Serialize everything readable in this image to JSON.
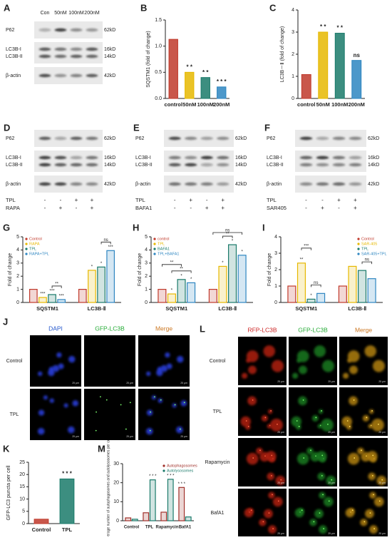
{
  "chart_data": [
    {
      "panel": "B",
      "type": "bar",
      "y_label": "SQSTM1 (fold of change)",
      "categories": [
        "control",
        "50nM",
        "100nM",
        "200nM"
      ],
      "values": [
        1.13,
        0.5,
        0.4,
        0.22
      ],
      "colors": [
        "#c0392b",
        "#e6b800",
        "#1a7a6a",
        "#2e86c1"
      ],
      "sig_labels": [
        null,
        "* *",
        "* *",
        "* * *"
      ],
      "ylim": [
        0,
        1.5
      ],
      "yticks": [
        {
          "value": 0,
          "label": "0.0"
        },
        {
          "value": 0.5,
          "label": "0.5"
        },
        {
          "value": 1,
          "label": "1.0"
        },
        {
          "value": 1.5,
          "label": "1.5"
        }
      ]
    },
    {
      "panel": "C",
      "type": "bar",
      "y_label": "LC3B－Ⅱ (fold of change)",
      "categories": [
        "control",
        "50nM",
        "100nM",
        "200nM"
      ],
      "values": [
        1.08,
        3.0,
        2.95,
        1.72
      ],
      "colors": [
        "#c0392b",
        "#e6b800",
        "#1a7a6a",
        "#2e86c1"
      ],
      "sig_labels": [
        null,
        "* *",
        "* *",
        "ns"
      ],
      "ylim": [
        0,
        4
      ],
      "yticks": [
        0,
        1,
        2,
        3,
        4
      ]
    },
    {
      "panel": "G",
      "type": "bar",
      "y_label": "Fold of change",
      "categories": [
        "SQSTM1",
        "LC3B-Ⅱ"
      ],
      "series": [
        {
          "name": "Control",
          "color": "#c0392b",
          "values": [
            1.0,
            1.0
          ],
          "sig_labels": [
            null,
            null
          ]
        },
        {
          "name": "RAPA",
          "color": "#e6b800",
          "values": [
            0.38,
            2.45
          ],
          "sig_labels": [
            "***",
            "*"
          ]
        },
        {
          "name": "TPL",
          "color": "#1a7a6a",
          "values": [
            0.6,
            2.7
          ],
          "sig_labels": [
            "***",
            "*"
          ]
        },
        {
          "name": "RAPA+TPL",
          "color": "#2e86c1",
          "values": [
            0.22,
            3.95
          ],
          "sig_labels": [
            "***",
            "***"
          ]
        }
      ],
      "brackets": [
        {
          "label": "**",
          "category": "SQSTM1",
          "between": [
            "TPL",
            "RAPA+TPL"
          ]
        },
        {
          "label": "ns",
          "category": "LC3B-Ⅱ",
          "between": [
            "TPL",
            "RAPA+TPL"
          ]
        }
      ],
      "ylim": [
        0,
        5
      ],
      "yticks": [
        0,
        1,
        2,
        3,
        4,
        5
      ],
      "legend": "top-left"
    },
    {
      "panel": "H",
      "type": "bar",
      "y_label": "Fold of change",
      "categories": [
        "SQSTM1",
        "LC3B-Ⅱ"
      ],
      "series": [
        {
          "name": "control",
          "color": "#c0392b",
          "values": [
            1.0,
            1.0
          ],
          "sig_labels": [
            null,
            null
          ]
        },
        {
          "name": "TPL",
          "color": "#e6b800",
          "values": [
            0.65,
            2.75
          ],
          "sig_labels": [
            "*",
            "*"
          ]
        },
        {
          "name": "BAFA1",
          "color": "#1a7a6a",
          "values": [
            1.75,
            4.4
          ],
          "sig_labels": [
            "*",
            "*"
          ]
        },
        {
          "name": "TPL+BAFA1",
          "color": "#2e86c1",
          "values": [
            1.5,
            3.6
          ],
          "sig_labels": [
            "*",
            "*"
          ]
        }
      ],
      "brackets": [
        {
          "label": "**",
          "category": "SQSTM1",
          "between": [
            "TPL",
            "TPL+BAFA1"
          ]
        },
        {
          "label": "**",
          "category": "SQSTM1",
          "between": [
            "control",
            "BAFA1"
          ]
        },
        {
          "label": "**",
          "category": "LC3B-Ⅱ",
          "between": [
            "TPL",
            "BAFA1"
          ]
        },
        {
          "label": "ns",
          "category": "LC3B-Ⅱ",
          "between": [
            "control",
            "TPL+BAFA1"
          ]
        }
      ],
      "ylim": [
        0,
        5
      ],
      "yticks": [
        0,
        1,
        2,
        3,
        4,
        5
      ],
      "legend": "top-left"
    },
    {
      "panel": "I",
      "type": "bar",
      "y_label": "Fold of change",
      "categories": [
        "SQSTM1",
        "LC3B-Ⅱ"
      ],
      "series": [
        {
          "name": "Control",
          "color": "#c0392b",
          "values": [
            1.0,
            1.0
          ],
          "sig_labels": [
            null,
            null
          ]
        },
        {
          "name": "SAR-405",
          "color": "#e6b800",
          "values": [
            2.4,
            2.2
          ],
          "sig_labels": [
            "**",
            null
          ]
        },
        {
          "name": "TPL",
          "color": "#1a7a6a",
          "values": [
            0.2,
            1.95
          ],
          "sig_labels": [
            "*",
            null
          ]
        },
        {
          "name": "SAR-405+TPL",
          "color": "#2e86c1",
          "values": [
            0.55,
            1.45
          ],
          "sig_labels": [
            null,
            null
          ]
        }
      ],
      "brackets": [
        {
          "label": "ns",
          "category": "SQSTM1",
          "between": [
            "TPL",
            "SAR-405+TPL"
          ]
        },
        {
          "label": "***",
          "category": "SQSTM1",
          "between": [
            "SAR-405",
            "TPL"
          ]
        },
        {
          "label": "ns",
          "category": "LC3B-Ⅱ",
          "between": [
            "TPL",
            "SAR-405+TPL"
          ]
        }
      ],
      "ylim": [
        0,
        4
      ],
      "yticks": [
        0,
        1,
        2,
        3,
        4
      ],
      "legend": "top-right"
    },
    {
      "panel": "K",
      "type": "bar",
      "y_label": "GFP-LC3 puncta per cell",
      "categories": [
        "Control",
        "TPL"
      ],
      "values": [
        1.8,
        18.2
      ],
      "colors": [
        "#c0392b",
        "#1a7a6a"
      ],
      "sig_labels": [
        null,
        "* * *"
      ],
      "ylim": [
        0,
        25
      ],
      "yticks": [
        0,
        5,
        10,
        15,
        20,
        25
      ]
    },
    {
      "panel": "M",
      "type": "bar",
      "y_label": "The average number of autophagosomes and autolysosomes per cell",
      "categories": [
        "Control",
        "TPL",
        "Rapamycin",
        "BafA1"
      ],
      "series": [
        {
          "name": "Autophagosomes",
          "color": "#a0302a",
          "values": [
            1.5,
            4.2,
            4.5,
            17.5
          ],
          "sig_labels": [
            null,
            null,
            null,
            "* * *"
          ]
        },
        {
          "name": "Autolysosomes",
          "color": "#1a7a6a",
          "values": [
            0.8,
            21.5,
            21.8,
            2.0
          ],
          "sig_labels": [
            null,
            "* * *",
            "* * *",
            null
          ]
        }
      ],
      "ylim": [
        0,
        30
      ],
      "yticks": [
        0,
        10,
        20,
        30
      ],
      "legend": "top-right"
    }
  ],
  "blots": [
    {
      "panel": "A",
      "lanes": [
        "Con",
        "50nM",
        "100nM",
        "200nM"
      ],
      "rows": [
        {
          "labels": [
            "P62"
          ],
          "kd": [
            "62kD"
          ]
        },
        {
          "labels": [
            "LC3B-I",
            "LC3B-II"
          ],
          "kd": [
            "16kD",
            "14kD"
          ]
        },
        {
          "labels": [
            "β-actin"
          ],
          "kd": [
            "42kD"
          ]
        }
      ]
    },
    {
      "panel": "D",
      "rows": [
        {
          "labels": [
            "P62"
          ],
          "kd": [
            "62kD"
          ]
        },
        {
          "labels": [
            "LC3B-I",
            "LC3B-II"
          ],
          "kd": [
            "16kD",
            "14kD"
          ]
        },
        {
          "labels": [
            "β-actin"
          ],
          "kd": [
            "42kD"
          ]
        }
      ],
      "treatments": [
        {
          "name": "TPL",
          "signs": [
            "-",
            "-",
            "+",
            "+"
          ]
        },
        {
          "name": "RAPA",
          "signs": [
            "-",
            "+",
            "-",
            "+"
          ]
        }
      ]
    },
    {
      "panel": "E",
      "rows": [
        {
          "labels": [
            "P62"
          ],
          "kd": [
            "62kD"
          ]
        },
        {
          "labels": [
            "LC3B-I",
            "LC3B-II"
          ],
          "kd": [
            "16kD",
            "14kD"
          ]
        },
        {
          "labels": [
            "β-actin"
          ],
          "kd": [
            "42kD"
          ]
        }
      ],
      "treatments": [
        {
          "name": "TPL",
          "signs": [
            "-",
            "+",
            "-",
            "+"
          ]
        },
        {
          "name": "BAFA1",
          "signs": [
            "-",
            "-",
            "+",
            "+"
          ]
        }
      ]
    },
    {
      "panel": "F",
      "rows": [
        {
          "labels": [
            "P62"
          ],
          "kd": [
            "62kD"
          ]
        },
        {
          "labels": [
            "LC3B-I",
            "LC3B-II"
          ],
          "kd": [
            "16kD",
            "14kD"
          ]
        },
        {
          "labels": [
            "β-actin"
          ],
          "kd": [
            "42kD"
          ]
        }
      ],
      "treatments": [
        {
          "name": "TPL",
          "signs": [
            "-",
            "-",
            "+",
            "+"
          ]
        },
        {
          "name": "SAR405",
          "signs": [
            "-",
            "+",
            "-",
            "+"
          ]
        }
      ]
    }
  ],
  "images": [
    {
      "panel": "J",
      "channels": [
        "DAPI",
        "GFP-LC3B",
        "Merge"
      ],
      "channel_colors": [
        "#2255cc",
        "#22aa33",
        "#cc7722"
      ],
      "rows": [
        "Control",
        "TPL"
      ],
      "scale": "25 μm"
    },
    {
      "panel": "L",
      "channels": [
        "RFP-LC3B",
        "GFP-LC3B",
        "Merge"
      ],
      "channel_colors": [
        "#cc2222",
        "#22aa33",
        "#cc7722"
      ],
      "rows": [
        "Control",
        "TPL",
        "Rapamycin",
        "BafA1"
      ],
      "scale": "25 μm"
    }
  ]
}
